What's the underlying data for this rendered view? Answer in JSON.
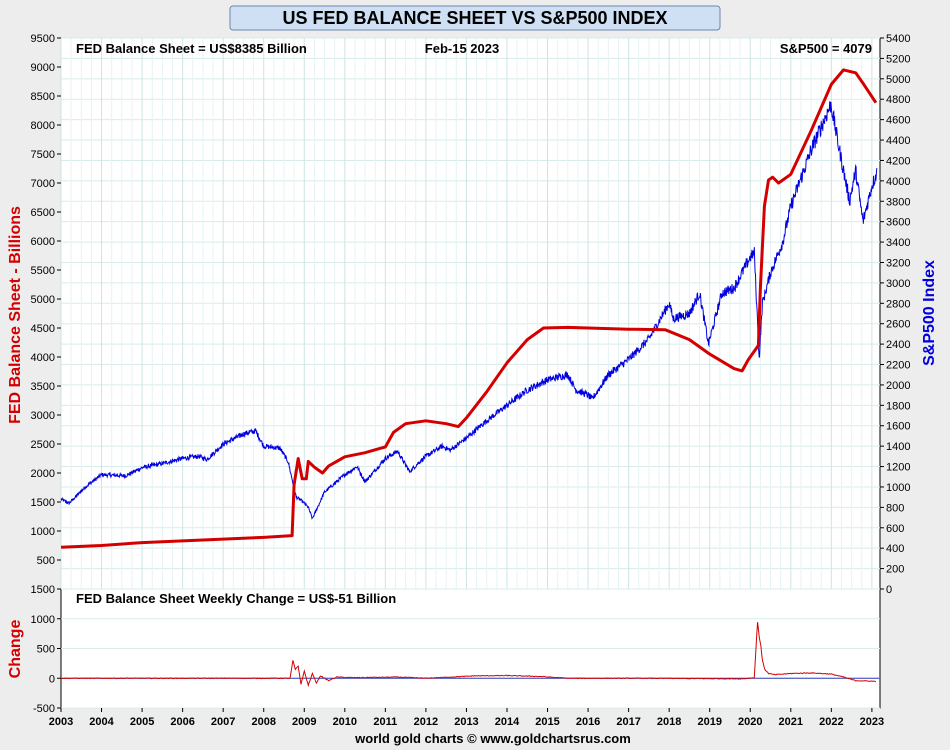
{
  "chart_data": [
    {
      "type": "line",
      "title": "US FED BALANCE SHEET VS S&P500 INDEX",
      "header_left": "FED Balance Sheet = US$8385 Billion",
      "header_center": "Feb-15  2023",
      "header_right": "S&P500 = 4079",
      "ylabel_left": "FED Balance Sheet - Billions",
      "ylabel_right": "S&P500 Index",
      "ylim_left": [
        0,
        9500
      ],
      "ylim_right": [
        0,
        5400
      ],
      "yticks_left": [
        500,
        1000,
        1500,
        2000,
        2500,
        3000,
        3500,
        4000,
        4500,
        5000,
        5500,
        6000,
        6500,
        7000,
        7500,
        8000,
        8500,
        9000,
        9500
      ],
      "yticks_right": [
        0,
        200,
        400,
        600,
        800,
        1000,
        1200,
        1400,
        1600,
        1800,
        2000,
        2200,
        2400,
        2600,
        2800,
        3000,
        3200,
        3400,
        3600,
        3800,
        4000,
        4200,
        4400,
        4600,
        4800,
        5000,
        5200,
        5400
      ],
      "xlim": [
        2003,
        2023.2
      ],
      "colors": {
        "fed": "#d40000",
        "spx": "#0000e0",
        "title_bg": "#cfe0f5"
      },
      "series": [
        {
          "name": "FED Balance Sheet",
          "axis": "left",
          "x": [
            2003.0,
            2004.0,
            2005.0,
            2006.0,
            2007.0,
            2008.0,
            2008.7,
            2008.75,
            2008.85,
            2008.95,
            2009.05,
            2009.1,
            2009.25,
            2009.45,
            2009.6,
            2009.8,
            2010.0,
            2010.5,
            2011.0,
            2011.2,
            2011.5,
            2012.0,
            2012.5,
            2012.8,
            2013.0,
            2013.5,
            2014.0,
            2014.5,
            2014.9,
            2015.5,
            2016.0,
            2017.0,
            2017.9,
            2018.5,
            2019.0,
            2019.6,
            2019.8,
            2019.95,
            2020.2,
            2020.25,
            2020.35,
            2020.45,
            2020.55,
            2020.7,
            2021.0,
            2021.5,
            2022.0,
            2022.3,
            2022.6,
            2022.8,
            2023.1
          ],
          "values": [
            720,
            750,
            800,
            830,
            860,
            890,
            920,
            1800,
            2250,
            1900,
            1900,
            2200,
            2100,
            2000,
            2120,
            2200,
            2280,
            2350,
            2450,
            2700,
            2850,
            2900,
            2850,
            2800,
            2950,
            3400,
            3900,
            4300,
            4500,
            4510,
            4500,
            4480,
            4470,
            4300,
            4050,
            3800,
            3760,
            3950,
            4200,
            5200,
            6600,
            7050,
            7100,
            7000,
            7150,
            7900,
            8700,
            8950,
            8900,
            8700,
            8385
          ]
        },
        {
          "name": "S&P500",
          "axis": "right",
          "x": [
            2003.0,
            2003.2,
            2003.6,
            2004.0,
            2004.6,
            2005.0,
            2005.5,
            2006.0,
            2006.4,
            2006.6,
            2007.0,
            2007.5,
            2007.8,
            2008.0,
            2008.4,
            2008.6,
            2008.8,
            2008.95,
            2009.1,
            2009.2,
            2009.5,
            2010.0,
            2010.3,
            2010.5,
            2011.0,
            2011.3,
            2011.6,
            2011.8,
            2012.0,
            2012.4,
            2012.6,
            2013.0,
            2013.5,
            2014.0,
            2014.5,
            2015.0,
            2015.5,
            2015.7,
            2016.0,
            2016.1,
            2016.5,
            2017.0,
            2017.5,
            2018.0,
            2018.1,
            2018.5,
            2018.75,
            2018.97,
            2019.3,
            2019.6,
            2020.0,
            2020.1,
            2020.22,
            2020.3,
            2020.5,
            2020.8,
            2021.0,
            2021.5,
            2021.99,
            2022.2,
            2022.45,
            2022.6,
            2022.78,
            2023.0,
            2023.12
          ],
          "values": [
            880,
            840,
            1000,
            1120,
            1110,
            1190,
            1230,
            1280,
            1300,
            1270,
            1420,
            1520,
            1550,
            1400,
            1380,
            1250,
            900,
            860,
            800,
            690,
            950,
            1120,
            1200,
            1050,
            1280,
            1350,
            1150,
            1230,
            1300,
            1400,
            1360,
            1480,
            1650,
            1800,
            1950,
            2050,
            2100,
            1950,
            1900,
            1860,
            2100,
            2250,
            2450,
            2800,
            2650,
            2700,
            2900,
            2400,
            2900,
            2950,
            3250,
            3300,
            2250,
            2800,
            3100,
            3400,
            3750,
            4300,
            4750,
            4300,
            3800,
            4100,
            3600,
            3950,
            4079
          ]
        }
      ]
    },
    {
      "type": "line",
      "title": "FED Balance Sheet Weekly Change = US$-51 Billion",
      "ylabel": "Change",
      "ylim": [
        -500,
        1500
      ],
      "yticks": [
        -500,
        0,
        500,
        1000,
        1500
      ],
      "xticks": [
        "2003",
        "2004",
        "2005",
        "2006",
        "2007",
        "2008",
        "2009",
        "2010",
        "2011",
        "2012",
        "2013",
        "2014",
        "2015",
        "2016",
        "2017",
        "2018",
        "2019",
        "2020",
        "2021",
        "2022",
        "2023"
      ],
      "xlim": [
        2003,
        2023.2
      ],
      "series": [
        {
          "name": "Weekly Change",
          "x": [
            2003.0,
            2008.65,
            2008.72,
            2008.78,
            2008.85,
            2008.92,
            2009.0,
            2009.1,
            2009.2,
            2009.3,
            2009.4,
            2009.6,
            2009.8,
            2010.2,
            2011.3,
            2012.0,
            2013.2,
            2014.0,
            2014.8,
            2015.5,
            2017.5,
            2019.8,
            2020.1,
            2020.18,
            2020.22,
            2020.26,
            2020.3,
            2020.36,
            2020.45,
            2020.6,
            2021.0,
            2021.5,
            2022.0,
            2022.3,
            2022.6,
            2023.1
          ],
          "values": [
            0,
            0,
            300,
            150,
            200,
            -100,
            120,
            -120,
            80,
            -80,
            40,
            -40,
            20,
            10,
            20,
            0,
            40,
            45,
            30,
            0,
            0,
            -10,
            10,
            950,
            700,
            550,
            300,
            150,
            80,
            60,
            80,
            90,
            70,
            20,
            -40,
            -51
          ]
        }
      ]
    }
  ],
  "footer": "world gold charts © www.goldchartsrus.com"
}
